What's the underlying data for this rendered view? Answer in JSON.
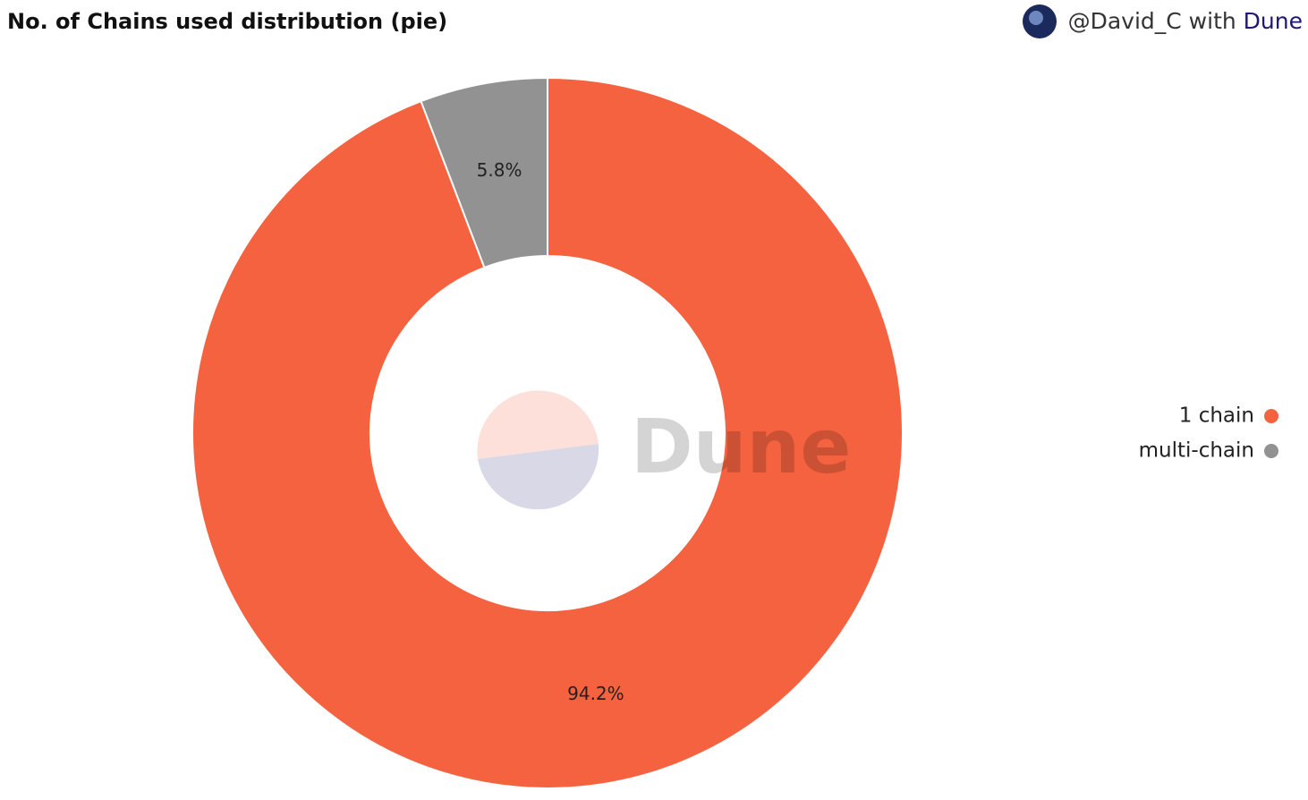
{
  "chart_data": {
    "type": "pie",
    "title": "No. of Chains used distribution (pie)",
    "attribution": {
      "user": "@David_C",
      "joiner": "with",
      "brand": "Dune"
    },
    "watermark": "Dune",
    "categories": [
      "1 chain",
      "multi-chain"
    ],
    "values": [
      94.2,
      5.8
    ],
    "value_labels": [
      "94.2%",
      "5.8%"
    ],
    "colors": [
      "#f4623f",
      "#929292"
    ],
    "donut": true,
    "legend": "right"
  }
}
